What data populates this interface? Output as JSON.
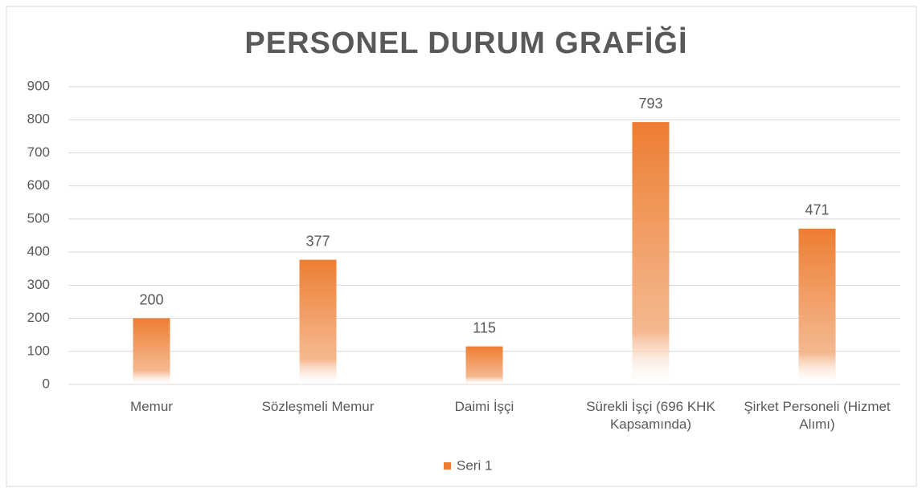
{
  "chart_data": {
    "type": "bar",
    "title": "PERSONEL DURUM GRAFİĞİ",
    "categories": [
      "Memur",
      "Sözleşmeli Memur",
      "Daimi İşçi",
      "Sürekli İşçi (696 KHK Kapsamında)",
      "Şirket Personeli (Hizmet Alımı)"
    ],
    "series": [
      {
        "name": "Seri 1",
        "color": "#ed7d31",
        "values": [
          200,
          377,
          115,
          793,
          471
        ]
      }
    ],
    "ylim": [
      0,
      900
    ],
    "yticks": [
      0,
      100,
      200,
      300,
      400,
      500,
      600,
      700,
      800,
      900
    ],
    "grid": true,
    "legend": "bottom"
  }
}
